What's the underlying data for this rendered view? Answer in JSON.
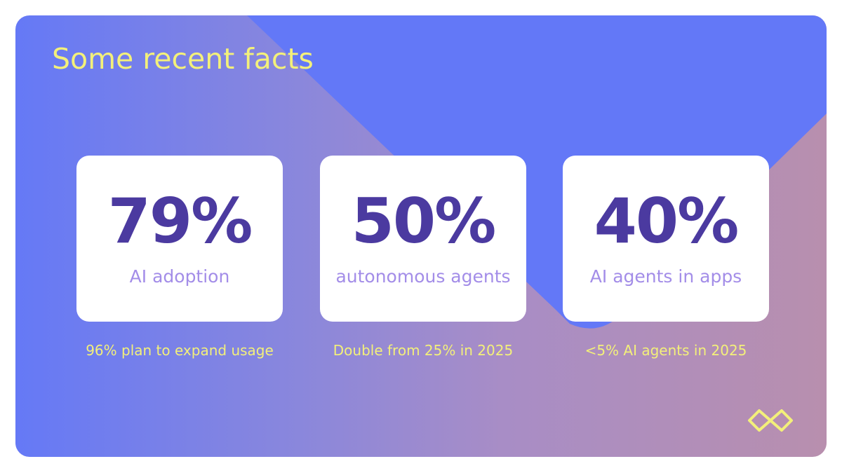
{
  "header": {
    "title": "Some recent facts"
  },
  "facts": [
    {
      "stat": "79%",
      "label": "AI adoption",
      "note": "96% plan to expand usage"
    },
    {
      "stat": "50%",
      "label": "autonomous agents",
      "note": "Double from 25% in 2025"
    },
    {
      "stat": "40%",
      "label": "AI agents in apps",
      "note": "<5% AI agents in 2025"
    }
  ]
}
